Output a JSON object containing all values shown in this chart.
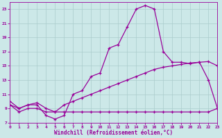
{
  "xlabel": "Windchill (Refroidissement éolien,°C)",
  "bg_color": "#cce8e8",
  "grid_color": "#aacccc",
  "line_color": "#990099",
  "x_min": 0,
  "x_max": 23,
  "y_min": 7,
  "y_max": 24,
  "y_ticks": [
    7,
    9,
    11,
    13,
    15,
    17,
    19,
    21,
    23
  ],
  "x_ticks": [
    0,
    1,
    2,
    3,
    4,
    5,
    6,
    7,
    8,
    9,
    10,
    11,
    12,
    13,
    14,
    15,
    16,
    17,
    18,
    19,
    20,
    21,
    22,
    23
  ],
  "line_flat_x": [
    0,
    1,
    2,
    3,
    4,
    5,
    6,
    7,
    8,
    9,
    10,
    11,
    12,
    13,
    14,
    15,
    16,
    17,
    18,
    19,
    20,
    21,
    22,
    23
  ],
  "line_flat_y": [
    9.5,
    8.5,
    9.0,
    9.0,
    8.5,
    8.5,
    8.5,
    8.5,
    8.5,
    8.5,
    8.5,
    8.5,
    8.5,
    8.5,
    8.5,
    8.5,
    8.5,
    8.5,
    8.5,
    8.5,
    8.5,
    8.5,
    8.5,
    9.0
  ],
  "line_diag_x": [
    0,
    1,
    2,
    3,
    4,
    5,
    6,
    7,
    8,
    9,
    10,
    11,
    12,
    13,
    14,
    15,
    16,
    17,
    18,
    19,
    20,
    21,
    22,
    23
  ],
  "line_diag_y": [
    9.5,
    9.0,
    9.5,
    9.8,
    9.0,
    8.5,
    9.5,
    10.0,
    10.5,
    11.0,
    11.5,
    12.0,
    12.5,
    13.0,
    13.5,
    14.0,
    14.5,
    14.8,
    15.0,
    15.2,
    15.4,
    15.5,
    15.6,
    15.0
  ],
  "line_main_x": [
    0,
    1,
    2,
    3,
    4,
    5,
    6,
    7,
    8,
    9,
    10,
    11,
    12,
    13,
    14,
    15,
    16,
    17,
    18,
    19,
    20,
    21,
    22,
    23
  ],
  "line_main_y": [
    10.0,
    9.0,
    9.5,
    9.5,
    8.0,
    7.5,
    8.0,
    11.0,
    11.5,
    13.5,
    14.0,
    17.5,
    18.0,
    20.5,
    23.0,
    23.5,
    23.0,
    17.0,
    15.5,
    15.5,
    15.3,
    15.5,
    13.0,
    9.0
  ]
}
